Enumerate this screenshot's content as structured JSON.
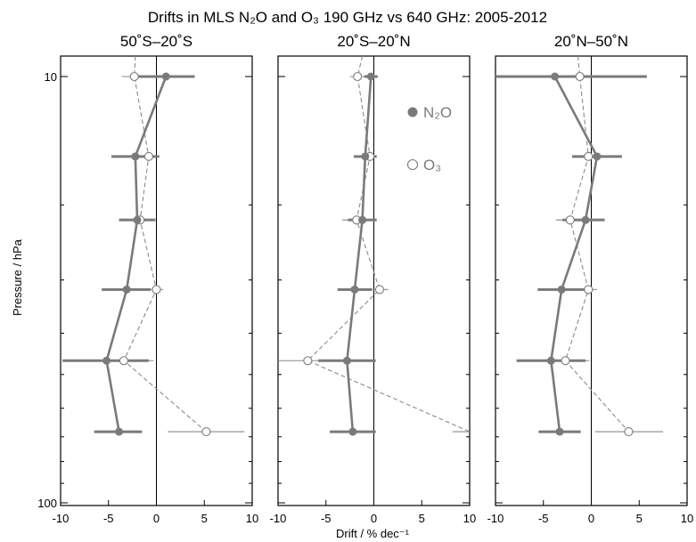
{
  "figure_title": "Drifts in MLS N₂O and O₃ 190 GHz vs 640 GHz: 2005-2012",
  "ylabel": "Pressure / hPa",
  "xlabel": "Drift / % dec⁻¹",
  "legend": {
    "placement": "upper-right of middle panel",
    "n2o_label": "N₂O",
    "o3_label": "O₃"
  },
  "colors": {
    "n2o": "#7a7a7a",
    "o3": "#8a8a8a",
    "zero_line": "#000000"
  },
  "chart_data": [
    {
      "type": "line",
      "title": "50˚S–20˚S",
      "x_axis": {
        "range": [
          -10,
          10
        ],
        "ticks": [
          -10,
          -5,
          0,
          5,
          10
        ]
      },
      "y_axis": {
        "scale": "log",
        "range": [
          100,
          10
        ],
        "tick_labels": [
          "10",
          "100"
        ]
      },
      "series": [
        {
          "name": "N₂O",
          "pressure": [
            10,
            15.4,
            21.7,
            31.6,
            46.4,
            68.1
          ],
          "drift": [
            1.0,
            -2.2,
            -2.0,
            -3.1,
            -5.2,
            -3.9
          ],
          "err_low": [
            -2.2,
            -4.7,
            -3.9,
            -5.7,
            -9.8,
            -6.5
          ],
          "err_high": [
            4.0,
            0.3,
            -0.1,
            -0.6,
            -0.8,
            -1.5
          ]
        },
        {
          "name": "O₃",
          "pressure": [
            10,
            15.4,
            21.7,
            31.6,
            46.4,
            68.1
          ],
          "drift": [
            -2.3,
            -0.8,
            -1.7,
            0.0,
            -3.4,
            5.2
          ],
          "err_low": [
            -3.6,
            -1.3,
            -2.5,
            -0.7,
            -6.5,
            1.2
          ],
          "err_high": [
            -1.1,
            -0.3,
            -0.9,
            0.7,
            -0.3,
            9.2
          ],
          "upper_point": {
            "pressure": 8.6,
            "drift": -2.2
          }
        }
      ]
    },
    {
      "type": "line",
      "title": "20˚S–20˚N",
      "x_axis": {
        "range": [
          -10,
          10
        ],
        "ticks": [
          -10,
          -5,
          0,
          5,
          10
        ]
      },
      "y_axis": {
        "scale": "log",
        "range": [
          100,
          10
        ]
      },
      "series": [
        {
          "name": "N₂O",
          "pressure": [
            10,
            15.4,
            21.7,
            31.6,
            46.4,
            68.1
          ],
          "drift": [
            -0.3,
            -0.9,
            -1.2,
            -2.0,
            -2.8,
            -2.2
          ],
          "err_low": [
            -1.0,
            -2.1,
            -2.7,
            -3.8,
            -5.8,
            -4.6
          ],
          "err_high": [
            0.4,
            0.3,
            0.3,
            -0.2,
            0.2,
            0.2
          ]
        },
        {
          "name": "O₃",
          "pressure": [
            10,
            15.4,
            21.7,
            31.6,
            46.4,
            68.1
          ],
          "drift": [
            -1.7,
            -0.4,
            -1.8,
            0.6,
            -6.9,
            10
          ],
          "err_low": [
            -2.5,
            -1.0,
            -3.3,
            -0.3,
            -10,
            8.2
          ],
          "err_high": [
            -0.9,
            0.2,
            -0.3,
            1.5,
            -1.3,
            10
          ],
          "upper_point": {
            "pressure": 8.6,
            "drift": -1.2
          }
        }
      ]
    },
    {
      "type": "line",
      "title": "20˚N–50˚N",
      "x_axis": {
        "range": [
          -10,
          10
        ],
        "ticks": [
          -10,
          -5,
          0,
          5,
          10
        ]
      },
      "y_axis": {
        "scale": "log",
        "range": [
          100,
          10
        ]
      },
      "series": [
        {
          "name": "N₂O",
          "pressure": [
            10,
            15.4,
            21.7,
            31.6,
            46.4,
            68.1
          ],
          "drift": [
            -3.8,
            0.6,
            -0.6,
            -3.1,
            -4.2,
            -3.3
          ],
          "err_low": [
            -10,
            -2.0,
            -3.0,
            -5.6,
            -7.8,
            -5.5
          ],
          "err_high": [
            5.8,
            3.2,
            1.4,
            -0.6,
            -0.6,
            -1.1
          ]
        },
        {
          "name": "O₃",
          "pressure": [
            10,
            15.4,
            21.7,
            31.6,
            46.4,
            68.1
          ],
          "drift": [
            -1.2,
            -0.3,
            -2.2,
            -0.3,
            -2.7,
            3.9
          ],
          "err_low": [
            -1.9,
            -0.9,
            -3.7,
            -1.2,
            -5.2,
            0.4
          ],
          "err_high": [
            -0.4,
            0.3,
            -0.7,
            0.6,
            -0.2,
            7.5
          ],
          "upper_point": {
            "pressure": 8.6,
            "drift": -1.4
          }
        }
      ]
    }
  ]
}
